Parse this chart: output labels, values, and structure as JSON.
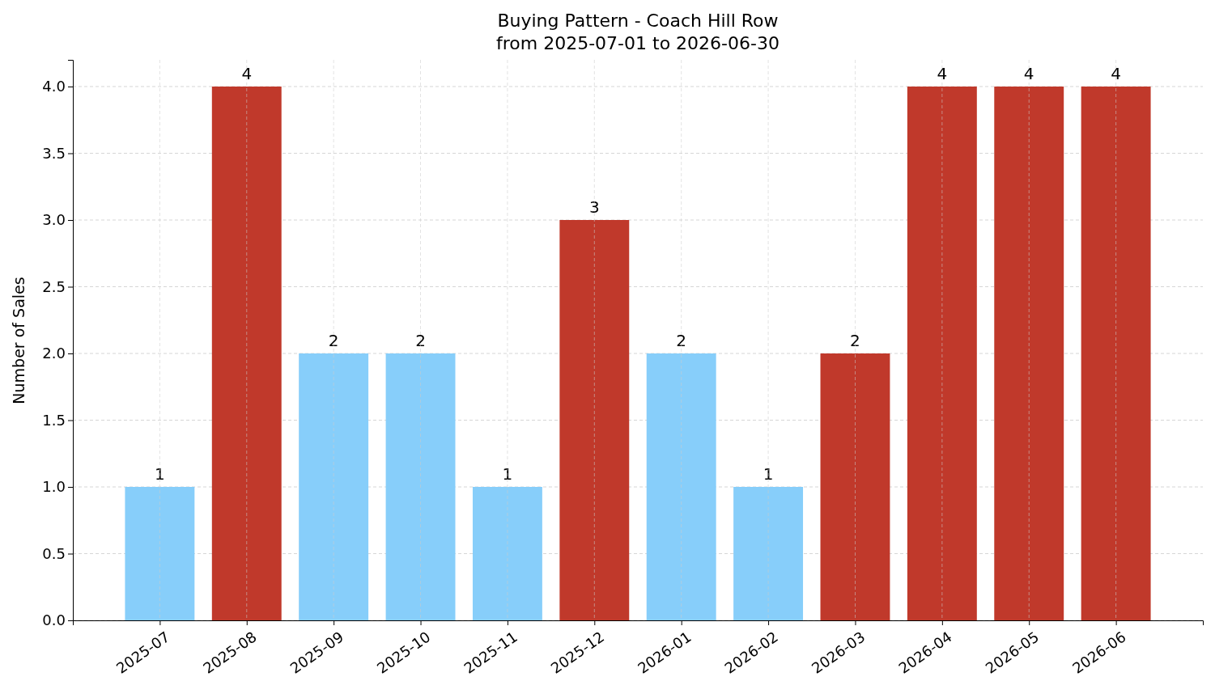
{
  "chart_data": {
    "type": "bar",
    "title": "Buying Pattern - Coach Hill Row",
    "subtitle": "from 2025-07-01 to 2026-06-30",
    "ylabel": "Number of Sales",
    "categories": [
      "2025-07",
      "2025-08",
      "2025-09",
      "2025-10",
      "2025-11",
      "2025-12",
      "2026-01",
      "2026-02",
      "2026-03",
      "2026-04",
      "2026-05",
      "2026-06"
    ],
    "values": [
      1,
      4,
      2,
      2,
      1,
      3,
      2,
      1,
      2,
      4,
      4,
      4
    ],
    "colors": [
      "#87cefa",
      "#c0392b",
      "#87cefa",
      "#87cefa",
      "#87cefa",
      "#c0392b",
      "#87cefa",
      "#87cefa",
      "#c0392b",
      "#c0392b",
      "#c0392b",
      "#c0392b"
    ],
    "ylim": [
      0,
      4.2
    ],
    "yticks": [
      {
        "value": 0,
        "label": "0.0"
      },
      {
        "value": 0.5,
        "label": "0.5"
      },
      {
        "value": 1,
        "label": "1.0"
      },
      {
        "value": 1.5,
        "label": "1.5"
      },
      {
        "value": 2,
        "label": "2.0"
      },
      {
        "value": 2.5,
        "label": "2.5"
      },
      {
        "value": 3,
        "label": "3.0"
      },
      {
        "value": 3.5,
        "label": "3.5"
      },
      {
        "value": 4,
        "label": "4.0"
      }
    ],
    "grid": true,
    "data_labels": true
  }
}
